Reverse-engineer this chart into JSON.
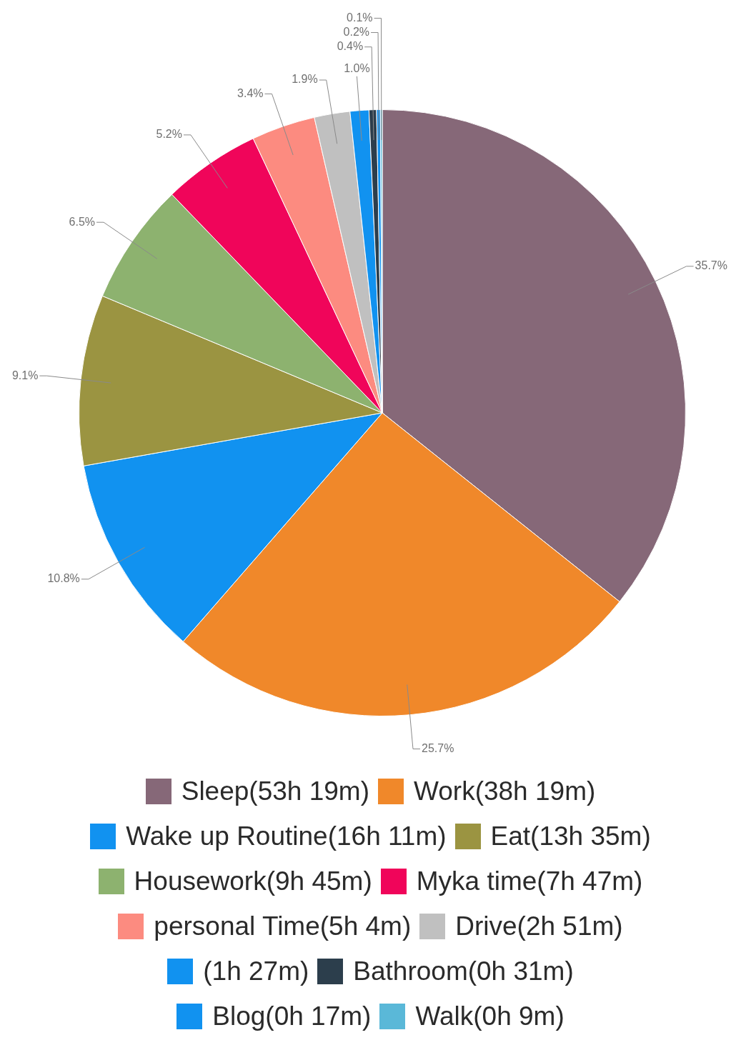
{
  "chart_data": {
    "type": "pie",
    "categories": [
      "Sleep(53h 19m)",
      "Work(38h 19m)",
      "Wake up Routine(16h 11m)",
      "Eat(13h 35m)",
      "Housework(9h 45m)",
      "Myka time(7h 47m)",
      "personal Time(5h 4m)",
      "Drive(2h 51m)",
      "(1h 27m)",
      "Bathroom(0h 31m)",
      "Blog(0h 17m)",
      "Walk(0h 9m)"
    ],
    "values": [
      35.7,
      25.7,
      10.8,
      9.1,
      6.5,
      5.2,
      3.4,
      1.9,
      1.0,
      0.4,
      0.2,
      0.1
    ],
    "value_labels": [
      "35.7%",
      "25.7%",
      "10.8%",
      "9.1%",
      "6.5%",
      "5.2%",
      "3.4%",
      "1.9%",
      "1.0%",
      "0.4%",
      "0.2%",
      "0.1%"
    ],
    "colors": [
      "#866878",
      "#f0882a",
      "#1192f0",
      "#9b9441",
      "#8db26f",
      "#f0055a",
      "#fc8b80",
      "#c0c0c0",
      "#1192f0",
      "#2c3e4c",
      "#1192f0",
      "#5ab8d8"
    ],
    "legend": "bottom"
  }
}
